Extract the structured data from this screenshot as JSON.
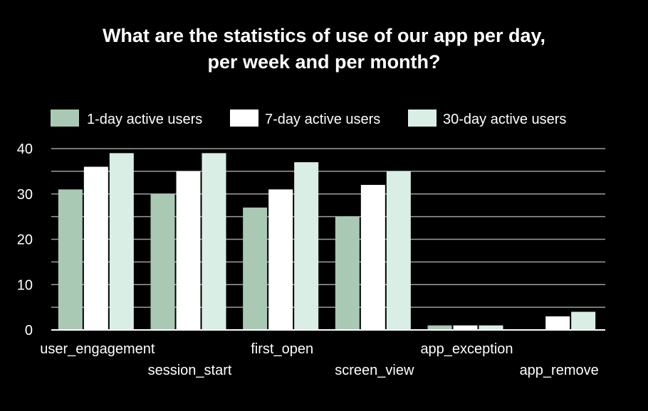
{
  "chart_data": {
    "type": "bar",
    "title_lines": [
      "What are the statistics of use of our app per day,",
      "per week and per month?"
    ],
    "categories": [
      "user_engagement",
      "session_start",
      "first_open",
      "screen_view",
      "app_exception",
      "app_remove"
    ],
    "series": [
      {
        "name": "1-day active users",
        "color": "#a9c9b4",
        "values": [
          31,
          30,
          27,
          25,
          1,
          0
        ]
      },
      {
        "name": "7-day active users",
        "color": "#ffffff",
        "values": [
          36,
          35,
          31,
          32,
          1,
          3
        ]
      },
      {
        "name": "30-day active users",
        "color": "#d9efe5",
        "values": [
          39,
          39,
          37,
          35,
          1,
          4
        ]
      }
    ],
    "yticks": [
      0,
      10,
      20,
      30,
      40
    ],
    "ylim": [
      0,
      40
    ],
    "grid": true,
    "legend_position": "top",
    "xlabel": "",
    "ylabel": ""
  },
  "colors": {
    "background": "#000000",
    "text": "#ffffff",
    "grid": "#9e9e9e",
    "axis": "#ffffff"
  }
}
